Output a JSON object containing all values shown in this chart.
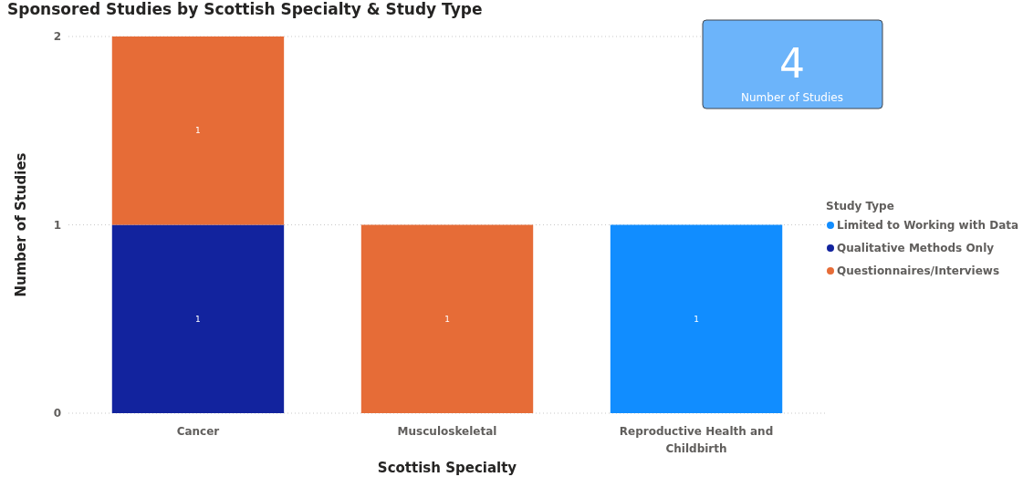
{
  "chart_data": {
    "type": "bar",
    "title": "Sponsored Studies by Scottish Specialty & Study Type",
    "xlabel": "Scottish Specialty",
    "ylabel": "Number of Studies",
    "legend_title": "Study Type",
    "categories": [
      "Cancer",
      "Musculoskeletal",
      "Reproductive Health and Childbirth"
    ],
    "series": [
      {
        "name": "Limited to Working with Data",
        "color": "#118dff",
        "values": [
          null,
          null,
          1
        ]
      },
      {
        "name": "Qualitative Methods Only",
        "color": "#12239e",
        "values": [
          1,
          null,
          null
        ]
      },
      {
        "name": "Questionnaires/Interviews",
        "color": "#e66c37",
        "values": [
          1,
          1,
          null
        ]
      }
    ],
    "stacked": true,
    "ylim": [
      0,
      2
    ],
    "yticks": [
      0,
      1,
      2
    ],
    "grid": "y",
    "legend": "right",
    "data_labels": true,
    "annotations": [
      "4",
      "Number of Studies"
    ]
  }
}
